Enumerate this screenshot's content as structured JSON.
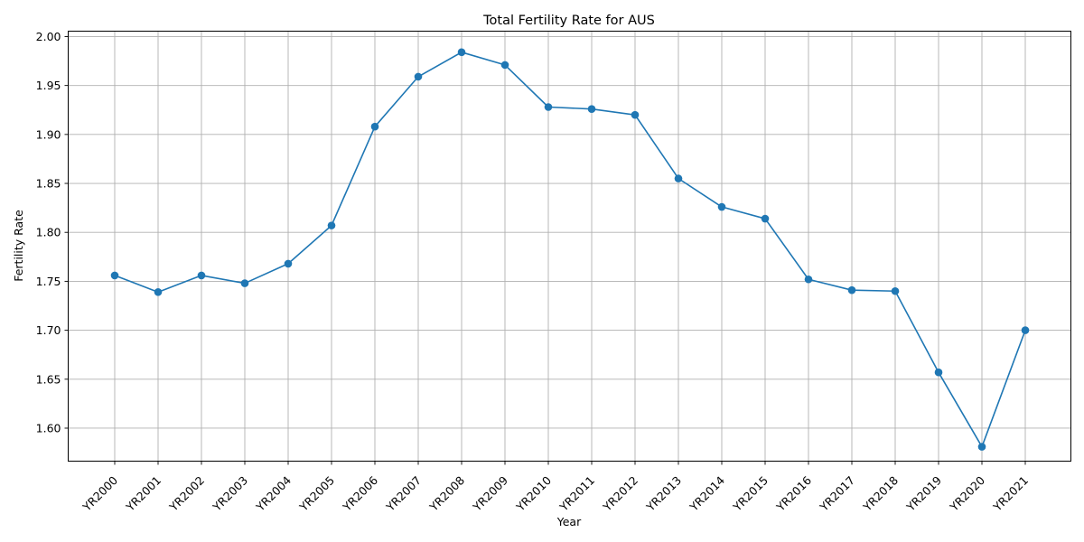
{
  "chart_data": {
    "type": "line",
    "title": "Total Fertility Rate for AUS",
    "xlabel": "Year",
    "ylabel": "Fertility Rate",
    "categories": [
      "YR2000",
      "YR2001",
      "YR2002",
      "YR2003",
      "YR2004",
      "YR2005",
      "YR2006",
      "YR2007",
      "YR2008",
      "YR2009",
      "YR2010",
      "YR2011",
      "YR2012",
      "YR2013",
      "YR2014",
      "YR2015",
      "YR2016",
      "YR2017",
      "YR2018",
      "YR2019",
      "YR2020",
      "YR2021"
    ],
    "series": [
      {
        "values": [
          1.756,
          1.739,
          1.756,
          1.748,
          1.768,
          1.807,
          1.908,
          1.959,
          1.984,
          1.971,
          1.928,
          1.926,
          1.92,
          1.855,
          1.826,
          1.814,
          1.752,
          1.741,
          1.74,
          1.657,
          1.581,
          1.7
        ],
        "color": "#1f77b4",
        "marker": "circle"
      }
    ],
    "ylim": [
      1.5663,
      2.0055
    ],
    "yticks": [
      "1.60",
      "1.65",
      "1.70",
      "1.75",
      "1.80",
      "1.85",
      "1.90",
      "1.95",
      "2.00"
    ],
    "grid": true,
    "legend": "none"
  }
}
